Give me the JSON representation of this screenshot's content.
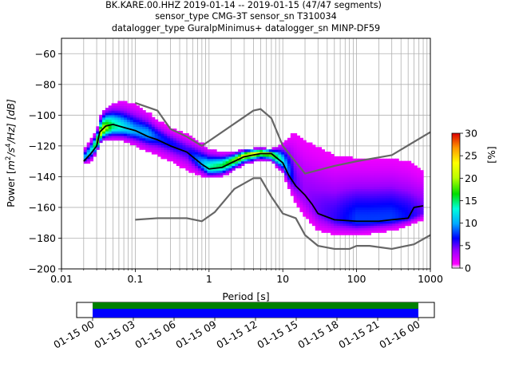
{
  "title": {
    "line1": "BK.KARE.00.HHZ   2019-01-14 -- 2019-01-15  (47/47 segments)",
    "line2": "sensor_type CMG-3T sensor_sn T310034",
    "line3": "datalogger_type GuralpMinimus+ datalogger_sn MINP-DF59"
  },
  "chart_data": [
    {
      "type": "heatmap",
      "title": "BK.KARE.00.HHZ   2019-01-14 -- 2019-01-15  (47/47 segments)",
      "xlabel": "Period [s]",
      "ylabel": "Power [m²/s⁴/Hz] [dB]",
      "ylabel_parts": {
        "pre": "Power [",
        "m": "m",
        "sup2": "2",
        "mid": "/s",
        "sup4": "4",
        "post": "/Hz] [dB]"
      },
      "xscale": "log",
      "xlim": [
        0.01,
        1000
      ],
      "ylim": [
        -200,
        -50
      ],
      "xticks": [
        0.01,
        0.1,
        1,
        10,
        100,
        1000
      ],
      "xtick_labels": [
        "0.01",
        "0.1",
        "1",
        "10",
        "100",
        "1000"
      ],
      "yticks": [
        -200,
        -180,
        -160,
        -140,
        -120,
        -100,
        -80,
        -60
      ],
      "ytick_labels": [
        "−200",
        "−180",
        "−160",
        "−140",
        "−120",
        "−100",
        "−80",
        "−60"
      ],
      "grid": true,
      "colorbar": {
        "label": "[%]",
        "range": [
          0,
          30
        ],
        "ticks": [
          0,
          5,
          10,
          15,
          20,
          25,
          30
        ],
        "tick_labels": [
          "0",
          "5",
          "10",
          "15",
          "20",
          "25",
          "30"
        ]
      },
      "density": {
        "x": [
          0.02,
          0.025,
          0.03,
          0.035,
          0.04,
          0.05,
          0.07,
          0.1,
          0.15,
          0.2,
          0.3,
          0.5,
          0.8,
          1.0,
          1.5,
          2,
          3,
          5,
          7,
          10,
          15,
          20,
          30,
          50,
          100,
          150,
          300,
          500,
          800
        ],
        "y_center": [
          -128,
          -123,
          -118,
          -110,
          -108,
          -107,
          -108,
          -110,
          -112,
          -114,
          -118,
          -123,
          -131,
          -134,
          -133,
          -130,
          -126,
          -124,
          -125,
          -130,
          -144,
          -152,
          -162,
          -167,
          -168,
          -168,
          -167,
          -166,
          -163
        ],
        "y_upper": [
          -122,
          -116,
          -110,
          -98,
          -95,
          -92,
          -91,
          -93,
          -98,
          -103,
          -108,
          -112,
          -118,
          -122,
          -124,
          -124,
          -122,
          -121,
          -122,
          -118,
          -110,
          -112,
          -118,
          -125,
          -128,
          -128,
          -128,
          -130,
          -134
        ],
        "y_lower": [
          -132,
          -130,
          -124,
          -117,
          -116,
          -116,
          -117,
          -120,
          -124,
          -126,
          -130,
          -136,
          -140,
          -141,
          -140,
          -137,
          -132,
          -129,
          -130,
          -138,
          -158,
          -168,
          -176,
          -178,
          -178,
          -177,
          -175,
          -172,
          -168
        ],
        "peak_pct": [
          10,
          12,
          18,
          22,
          20,
          15,
          12,
          10,
          10,
          8,
          7,
          6,
          10,
          14,
          16,
          18,
          22,
          22,
          20,
          12,
          5,
          4,
          5,
          6,
          8,
          8,
          8,
          7,
          5
        ]
      },
      "series": [
        {
          "name": "",
          "x": [
            0.02,
            0.025,
            0.03,
            0.033,
            0.04,
            0.05,
            0.07,
            0.1,
            0.15,
            0.2,
            0.3,
            0.5,
            0.8,
            1.0,
            1.5,
            2,
            3,
            5,
            7,
            10,
            12,
            15,
            20,
            25,
            30,
            50,
            100,
            200,
            300,
            500,
            600,
            800
          ],
          "y": [
            -130,
            -125,
            -120,
            -111,
            -107,
            -106,
            -108,
            -110,
            -114,
            -116,
            -120,
            -124,
            -132,
            -135,
            -134,
            -131,
            -127,
            -125,
            -125,
            -131,
            -139,
            -146,
            -152,
            -158,
            -164,
            -168,
            -169,
            -169,
            -168,
            -167,
            -160,
            -159
          ]
        },
        {
          "name": "",
          "x": [
            0.1,
            0.2,
            0.3,
            0.5,
            0.8,
            4,
            5,
            7,
            10,
            20,
            50,
            100,
            300,
            1000
          ],
          "y": [
            -92,
            -97,
            -109,
            -114,
            -120,
            -97,
            -96,
            -102,
            -120,
            -138,
            -133,
            -130,
            -126,
            -111
          ]
        },
        {
          "name": "",
          "x": [
            0.1,
            0.2,
            0.5,
            0.8,
            1.2,
            2.2,
            4,
            5,
            7,
            10,
            15,
            20,
            30,
            50,
            80,
            100,
            150,
            300,
            600,
            1000
          ],
          "y": [
            -168,
            -167,
            -167,
            -169,
            -163,
            -148,
            -141,
            -141,
            -153,
            -164,
            -167,
            -178,
            -185,
            -187,
            -187,
            -185,
            -185,
            -187,
            -184,
            -178
          ]
        }
      ]
    },
    {
      "type": "bar",
      "title": "",
      "xlabel": "",
      "ylabel": "",
      "time_range": [
        "01-15 00",
        "01-16 00"
      ],
      "coverage": [
        [
          "01-15 00",
          "01-16 00"
        ]
      ],
      "bar_colors": {
        "data": "#008000",
        "gaps": "#0000ff"
      },
      "xtick_labels": [
        "01-15 00",
        "01-15 03",
        "01-15 06",
        "01-15 09",
        "01-15 12",
        "01-15 15",
        "01-15 18",
        "01-15 21",
        "01-16 00"
      ]
    }
  ]
}
